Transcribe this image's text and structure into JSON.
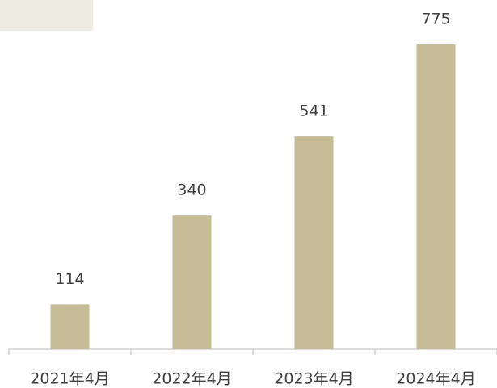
{
  "chart_data": {
    "type": "bar",
    "categories": [
      "2021年4月",
      "2022年4月",
      "2023年4月",
      "2024年4月"
    ],
    "values": [
      114,
      340,
      541,
      775
    ],
    "color": "#c5bb96"
  }
}
